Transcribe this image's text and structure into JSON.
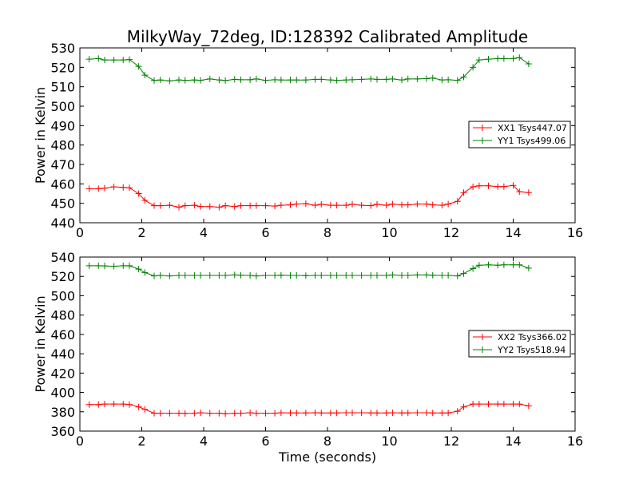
{
  "chart_data": [
    {
      "type": "line",
      "title": "MilkyWay_72deg, ID:128392 Calibrated Amplitude",
      "xlabel": "",
      "ylabel": "Power in Kelvin",
      "xlim": [
        0,
        16
      ],
      "ylim": [
        440,
        530
      ],
      "xticks": [
        0,
        2,
        4,
        6,
        8,
        10,
        12,
        14,
        16
      ],
      "yticks": [
        440,
        450,
        460,
        470,
        480,
        490,
        500,
        510,
        520,
        530
      ],
      "legend_position": "center-right",
      "x": [
        0.3,
        0.6,
        0.8,
        1.1,
        1.4,
        1.6,
        1.9,
        2.1,
        2.4,
        2.6,
        2.9,
        3.2,
        3.4,
        3.7,
        3.9,
        4.2,
        4.5,
        4.7,
        5.0,
        5.2,
        5.5,
        5.7,
        6.0,
        6.3,
        6.5,
        6.8,
        7.0,
        7.3,
        7.6,
        7.8,
        8.1,
        8.3,
        8.6,
        8.8,
        9.1,
        9.4,
        9.6,
        9.9,
        10.1,
        10.4,
        10.6,
        10.9,
        11.2,
        11.4,
        11.7,
        11.9,
        12.2,
        12.4,
        12.7,
        12.9,
        13.2,
        13.5,
        13.7,
        14.0,
        14.2,
        14.5
      ],
      "series": [
        {
          "name": "XX1 Tsys447.07",
          "color": "#ff0000",
          "values": [
            457.5,
            457.5,
            457.8,
            458.5,
            458.2,
            458.0,
            455.0,
            451.5,
            448.8,
            448.8,
            449.0,
            448.0,
            448.8,
            449.0,
            448.3,
            448.3,
            448.0,
            448.8,
            448.3,
            448.8,
            448.8,
            448.8,
            448.8,
            448.6,
            449.0,
            449.2,
            449.6,
            449.8,
            449.0,
            449.5,
            449.0,
            449.0,
            449.0,
            449.5,
            449.0,
            448.8,
            449.5,
            449.0,
            449.6,
            449.2,
            449.2,
            449.6,
            449.6,
            449.2,
            449.0,
            449.6,
            451.0,
            455.5,
            458.5,
            459.0,
            459.0,
            458.6,
            458.6,
            459.2,
            456.0,
            455.5
          ]
        },
        {
          "name": "YY1 Tsys499.06",
          "color": "#008000",
          "values": [
            524.2,
            524.5,
            523.8,
            523.8,
            523.8,
            524.0,
            520.5,
            516.0,
            513.2,
            513.5,
            513.0,
            513.5,
            513.3,
            513.5,
            513.3,
            514.0,
            513.5,
            513.2,
            513.8,
            513.6,
            513.6,
            514.0,
            513.3,
            513.6,
            513.5,
            513.5,
            513.5,
            513.5,
            513.8,
            513.8,
            513.5,
            513.3,
            513.5,
            513.6,
            513.8,
            514.0,
            513.8,
            513.8,
            514.0,
            513.5,
            514.0,
            514.0,
            514.2,
            514.5,
            513.5,
            513.6,
            513.3,
            515.0,
            520.0,
            523.8,
            524.2,
            524.5,
            524.5,
            524.5,
            525.0,
            521.8
          ]
        }
      ]
    },
    {
      "type": "line",
      "title": "",
      "xlabel": "Time (seconds)",
      "ylabel": "Power in Kelvin",
      "xlim": [
        0,
        16
      ],
      "ylim": [
        360,
        540
      ],
      "xticks": [
        0,
        2,
        4,
        6,
        8,
        10,
        12,
        14,
        16
      ],
      "yticks": [
        360,
        380,
        400,
        420,
        440,
        460,
        480,
        500,
        520,
        540
      ],
      "legend_position": "center-right",
      "x": [
        0.3,
        0.6,
        0.8,
        1.1,
        1.4,
        1.6,
        1.9,
        2.1,
        2.4,
        2.6,
        2.9,
        3.2,
        3.4,
        3.7,
        3.9,
        4.2,
        4.5,
        4.7,
        5.0,
        5.2,
        5.5,
        5.7,
        6.0,
        6.3,
        6.5,
        6.8,
        7.0,
        7.3,
        7.6,
        7.8,
        8.1,
        8.3,
        8.6,
        8.8,
        9.1,
        9.4,
        9.6,
        9.9,
        10.1,
        10.4,
        10.6,
        10.9,
        11.2,
        11.4,
        11.7,
        11.9,
        12.2,
        12.4,
        12.7,
        12.9,
        13.2,
        13.5,
        13.7,
        14.0,
        14.2,
        14.5
      ],
      "series": [
        {
          "name": "XX2 Tsys366.02",
          "color": "#ff0000",
          "values": [
            387.5,
            387.5,
            388.0,
            388.0,
            388.0,
            387.5,
            385.0,
            382.5,
            378.5,
            378.5,
            378.5,
            378.5,
            378.3,
            378.5,
            379.0,
            378.5,
            378.5,
            378.0,
            378.5,
            378.5,
            379.0,
            378.5,
            378.5,
            378.5,
            379.0,
            378.8,
            378.8,
            378.8,
            379.0,
            378.8,
            378.8,
            378.8,
            379.0,
            379.0,
            379.0,
            378.8,
            378.8,
            378.8,
            379.0,
            378.8,
            378.8,
            379.0,
            379.0,
            378.8,
            378.8,
            378.8,
            380.5,
            385.0,
            388.0,
            388.0,
            388.0,
            388.0,
            388.0,
            388.0,
            388.0,
            386.0
          ]
        },
        {
          "name": "YY2 Tsys518.94",
          "color": "#008000",
          "values": [
            531.0,
            531.0,
            530.8,
            530.5,
            531.0,
            531.0,
            527.5,
            524.0,
            520.5,
            521.0,
            520.5,
            521.0,
            521.0,
            521.0,
            521.0,
            521.0,
            521.0,
            521.0,
            521.5,
            521.2,
            521.0,
            520.5,
            521.0,
            521.0,
            521.2,
            521.0,
            521.0,
            520.8,
            521.0,
            521.0,
            521.0,
            521.0,
            521.0,
            521.0,
            521.0,
            521.0,
            521.0,
            521.0,
            521.5,
            521.0,
            521.0,
            521.5,
            521.5,
            521.2,
            521.0,
            521.0,
            520.5,
            523.0,
            528.0,
            531.5,
            532.0,
            531.5,
            532.0,
            532.0,
            532.0,
            528.5
          ]
        }
      ]
    }
  ]
}
